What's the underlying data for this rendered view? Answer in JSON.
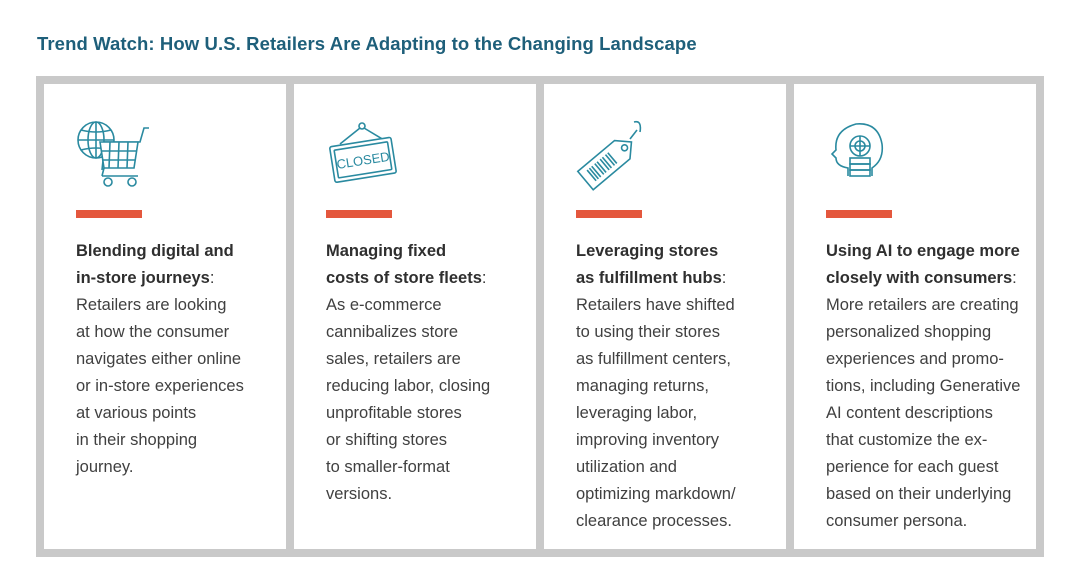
{
  "title": "Trend Watch: How U.S. Retailers Are Adapting to the Changing Landscape",
  "colors": {
    "title": "#1e5f7a",
    "accent_bar": "#e4573d",
    "icon_stroke": "#2a8aa0",
    "frame": "#c9c9c9"
  },
  "panels": [
    {
      "icon": "globe-shopping-cart-icon",
      "heading_lines": [
        "Blending digital and",
        "in-store journeys"
      ],
      "heading_suffix": ":",
      "body_lines": [
        "Retailers are looking",
        "at how the consumer",
        "navigates either online",
        "or in-store experiences",
        "at various points",
        "in their shopping",
        "journey."
      ]
    },
    {
      "icon": "closed-sign-icon",
      "icon_text": "CLOSED",
      "heading_lines": [
        "Managing fixed",
        "costs of store fleets"
      ],
      "heading_suffix": ":",
      "body_lines": [
        "As e-commerce",
        "cannibalizes store",
        "sales, retailers are",
        "reducing labor, closing",
        "unprofitable stores",
        "or shifting stores",
        "to smaller-format",
        "versions."
      ]
    },
    {
      "icon": "price-tag-barcode-icon",
      "heading_lines": [
        "Leveraging stores",
        "as fulfillment hubs"
      ],
      "heading_suffix": ":",
      "body_lines": [
        "Retailers have shifted",
        "to using their stores",
        "as fulfillment centers,",
        "managing returns,",
        "leveraging labor,",
        "improving inventory",
        "utilization and",
        "optimizing markdown/",
        "clearance processes."
      ]
    },
    {
      "icon": "ai-head-icon",
      "heading_lines": [
        "Using AI to engage more",
        "closely with consumers"
      ],
      "heading_suffix": ":",
      "body_lines": [
        "More retailers are creating",
        "personalized shopping",
        "experiences and promo-",
        "tions, including Generative",
        "AI content descriptions",
        "that customize the ex-",
        "perience for each guest",
        "based on their underlying",
        "consumer persona."
      ]
    }
  ]
}
